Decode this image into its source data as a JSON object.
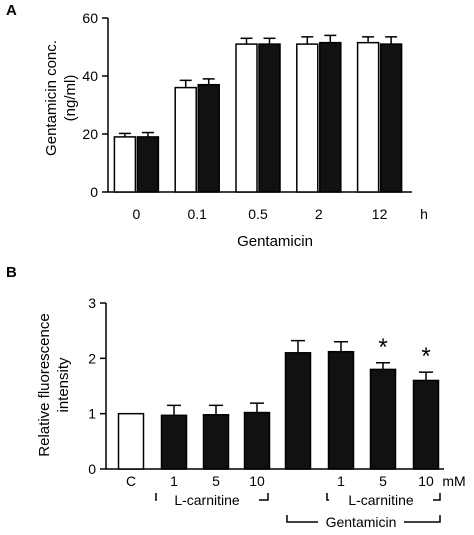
{
  "chart_data": [
    {
      "panel": "A",
      "type": "bar",
      "ylabel_line1": "Gentamicin conc.",
      "ylabel_line2": "(ng/ml)",
      "xlabel": "Gentamicin",
      "x_unit": "h",
      "categories": [
        "0",
        "0.1",
        "0.5",
        "2",
        "12"
      ],
      "ylim": [
        0,
        60
      ],
      "yticks": [
        "0",
        "20",
        "40",
        "60"
      ],
      "legend": "none",
      "grid": false,
      "series": [
        {
          "fill": "white",
          "values": [
            19,
            36,
            51,
            51,
            51.5
          ],
          "errors": [
            1.2,
            2.5,
            2,
            2.5,
            2
          ]
        },
        {
          "fill": "black",
          "values": [
            19,
            37,
            51,
            51.5,
            51
          ],
          "errors": [
            1.5,
            2,
            2,
            2.5,
            2.5
          ]
        }
      ]
    },
    {
      "panel": "B",
      "type": "bar",
      "ylabel_line1": "Relative fluorescence",
      "ylabel_line2": "intensity",
      "x_unit": "mM",
      "categories": [
        "C",
        "1",
        "5",
        "10",
        "",
        "1",
        "5",
        "10"
      ],
      "ylim": [
        0,
        3
      ],
      "yticks": [
        "0",
        "1",
        "2",
        "3"
      ],
      "legend": "none",
      "grid": false,
      "values": [
        1.0,
        0.97,
        0.98,
        1.02,
        2.1,
        2.12,
        1.8,
        1.6
      ],
      "errors": [
        0,
        0.18,
        0.17,
        0.17,
        0.22,
        0.18,
        0.12,
        0.15
      ],
      "fills": [
        "white",
        "black",
        "black",
        "black",
        "black",
        "black",
        "black",
        "black"
      ],
      "significance": [
        false,
        false,
        false,
        false,
        false,
        false,
        true,
        true
      ],
      "significance_mark": "*",
      "group_labels": {
        "lcarnitine": "L-carnitine",
        "gentamicin": "Gentamicin"
      }
    }
  ]
}
